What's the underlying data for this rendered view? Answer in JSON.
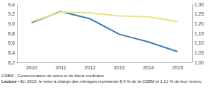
{
  "chart_data": {
    "type": "line",
    "categories": [
      "2010",
      "2011",
      "2012",
      "2013",
      "2014",
      "2015"
    ],
    "series": [
      {
        "color": "#3f7db5",
        "values": [
          9.02,
          9.25,
          9.1,
          8.78,
          8.62,
          8.42
        ]
      },
      {
        "color": "#ece47c",
        "values": [
          1.21,
          1.26,
          1.255,
          1.24,
          1.235,
          1.21
        ],
        "axis": "y2"
      }
    ],
    "ylim": [
      8.2,
      9.4
    ],
    "yticks": [
      {
        "value": 8.2,
        "label": "8,2"
      },
      {
        "value": 8.4,
        "label": "8,4"
      },
      {
        "value": 8.6,
        "label": "8,6"
      },
      {
        "value": 8.8,
        "label": "8,8"
      },
      {
        "value": 9.0,
        "label": "9,0"
      },
      {
        "value": 9.2,
        "label": "9,2"
      },
      {
        "value": 9.4,
        "label": "9,4"
      }
    ],
    "y2lim": [
      1.0,
      1.3
    ],
    "y2ticks": [
      {
        "value": 1.0,
        "label": "1,00"
      },
      {
        "value": 1.05,
        "label": "1,05"
      },
      {
        "value": 1.1,
        "label": "1,10"
      },
      {
        "value": 1.15,
        "label": "1,15"
      },
      {
        "value": 1.2,
        "label": "1,20"
      },
      {
        "value": 1.25,
        "label": "1,25"
      },
      {
        "value": 1.3,
        "label": "1,30"
      }
    ],
    "grid": false,
    "notes": [
      "CSBM : Consommation de soins et de biens médicaux.",
      "Lecture • En 2015, le reste à charge des ménages représente 8,4 % de la CSBM et 1,21 % de leur revenu"
    ]
  }
}
